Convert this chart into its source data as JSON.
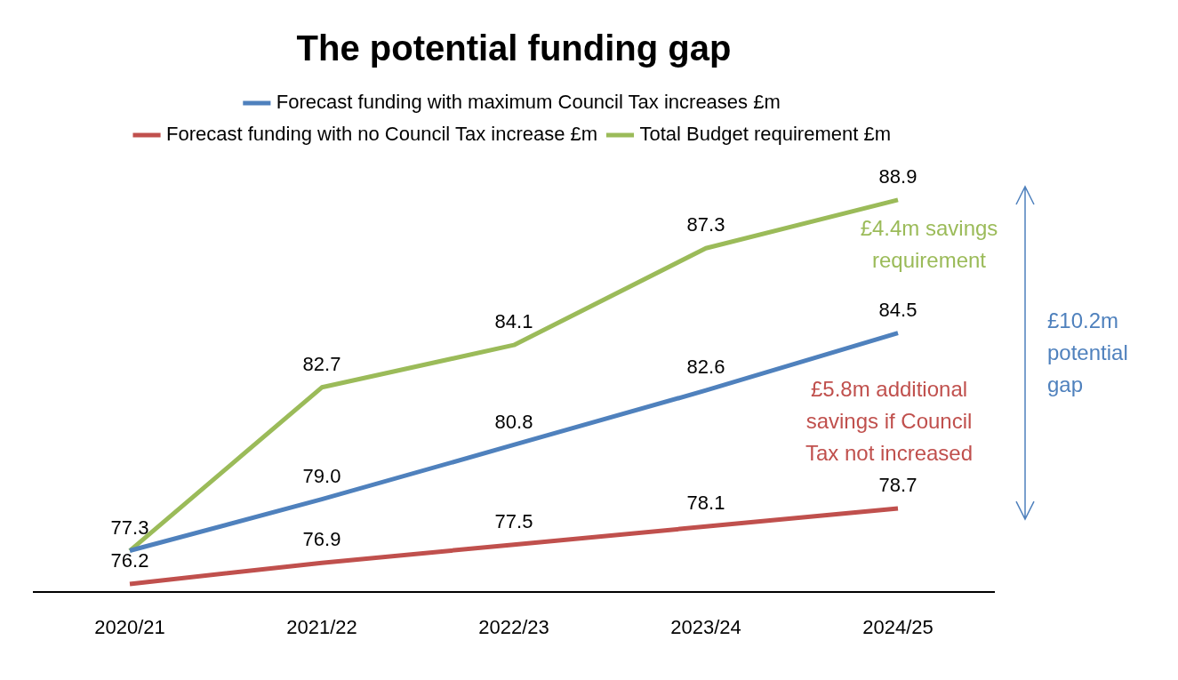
{
  "chart_data": {
    "type": "line",
    "title": "The potential funding gap",
    "categories": [
      "2020/21",
      "2021/22",
      "2022/23",
      "2023/24",
      "2024/25"
    ],
    "series": [
      {
        "name": "Forecast funding with maximum Council Tax increases £m",
        "color": "#4f81bd",
        "values": [
          77.3,
          79.0,
          80.8,
          82.6,
          84.5
        ],
        "value_labels": [
          "77.3",
          "79.0",
          "80.8",
          "82.6",
          "84.5"
        ]
      },
      {
        "name": "Forecast funding with no Council Tax increase £m",
        "color": "#c0504d",
        "values": [
          76.2,
          76.9,
          77.5,
          78.1,
          78.7
        ],
        "value_labels": [
          "76.2",
          "76.9",
          "77.5",
          "78.1",
          "78.7"
        ]
      },
      {
        "name": "Total Budget requirement £m",
        "color": "#9bbb59",
        "values": [
          77.3,
          82.7,
          84.1,
          87.3,
          88.9
        ],
        "value_labels": [
          null,
          "82.7",
          "84.1",
          "87.3",
          "88.9"
        ]
      }
    ],
    "legend": "top",
    "grid": false,
    "marker": "none",
    "line_style": "solid",
    "annotations": [
      "£4.4m savings requirement",
      "£5.8m additional savings if Council Tax not increased",
      "£10.2m potential gap"
    ]
  }
}
